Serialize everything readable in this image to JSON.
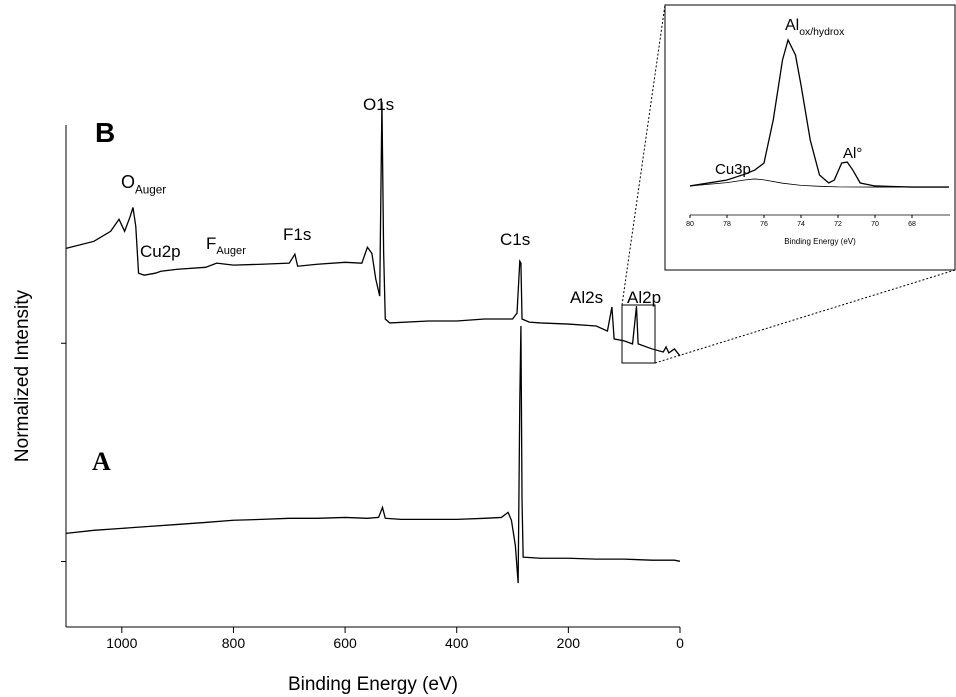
{
  "chart_data": [
    {
      "type": "line",
      "x_label": "Binding Energy (eV)",
      "y_label": "Normalized Intensity",
      "xlim": [
        1100,
        0
      ],
      "xticks": [
        1000,
        800,
        600,
        400,
        200,
        0
      ],
      "ylim": [
        0,
        2.3
      ],
      "yticks": [
        0.3,
        1.3
      ],
      "color": "#000000",
      "series": [
        {
          "x": [
            1100,
            1050,
            1000,
            950,
            900,
            850,
            800,
            750,
            700,
            650,
            600,
            560,
            540,
            533,
            528,
            500,
            450,
            400,
            350,
            320,
            308,
            302,
            295,
            290,
            287,
            285,
            283,
            281,
            250,
            200,
            150,
            100,
            50,
            10,
            0
          ],
          "values": [
            0.429,
            0.443,
            0.452,
            0.461,
            0.47,
            0.479,
            0.489,
            0.493,
            0.498,
            0.498,
            0.502,
            0.498,
            0.502,
            0.548,
            0.498,
            0.493,
            0.493,
            0.493,
            0.498,
            0.502,
            0.525,
            0.489,
            0.374,
            0.201,
            1.037,
            1.379,
            0.58,
            0.32,
            0.315,
            0.315,
            0.311,
            0.311,
            0.306,
            0.306,
            0.301
          ]
        },
        {
          "x": [
            1100,
            1050,
            1020,
            1005,
            995,
            985,
            980,
            975,
            970,
            960,
            940,
            930,
            900,
            850,
            830,
            800,
            750,
            700,
            690,
            685,
            650,
            600,
            570,
            560,
            552,
            545,
            538,
            534,
            531,
            528,
            520,
            450,
            400,
            350,
            300,
            292,
            287,
            285,
            283,
            270,
            250,
            200,
            150,
            130,
            122,
            118,
            100,
            85,
            78,
            75,
            50,
            30,
            25,
            20,
            10,
            0
          ],
          "values": [
            1.735,
            1.767,
            1.813,
            1.868,
            1.813,
            1.881,
            1.922,
            1.836,
            1.621,
            1.612,
            1.621,
            1.63,
            1.639,
            1.648,
            1.667,
            1.658,
            1.662,
            1.667,
            1.708,
            1.653,
            1.662,
            1.671,
            1.667,
            1.74,
            1.712,
            1.594,
            1.516,
            2.406,
            1.721,
            1.411,
            1.393,
            1.402,
            1.402,
            1.411,
            1.411,
            1.438,
            1.676,
            1.667,
            1.411,
            1.397,
            1.393,
            1.388,
            1.379,
            1.356,
            1.466,
            1.32,
            1.311,
            1.297,
            1.47,
            1.297,
            1.274,
            1.26,
            1.283,
            1.256,
            1.274,
            1.242
          ]
        }
      ],
      "annotations": [
        {
          "text": "B"
        },
        {
          "text": "A"
        },
        {
          "text": "O",
          "sub": "Auger"
        },
        {
          "text": "Cu2p"
        },
        {
          "text": "F",
          "sub": "Auger"
        },
        {
          "text": "F1s"
        },
        {
          "text": "O1s"
        },
        {
          "text": "C1s"
        },
        {
          "text": "Al2s"
        },
        {
          "text": "Al2p"
        }
      ]
    },
    {
      "type": "line",
      "x_label": "Binding Energy (eV)",
      "xlim": [
        80,
        66
      ],
      "xticks": [
        80,
        78,
        76,
        74,
        72,
        70,
        68
      ],
      "ylim": [
        0,
        1
      ],
      "color": "#000000",
      "series": [
        {
          "x": [
            80,
            78,
            77,
            76.5,
            76,
            75.5,
            75,
            74.7,
            74.3,
            74,
            73.5,
            73,
            72.5,
            72.2,
            71.8,
            71.5,
            71.2,
            70.8,
            70,
            68,
            67,
            66
          ],
          "values": [
            0.157,
            0.189,
            0.222,
            0.243,
            0.281,
            0.514,
            0.838,
            0.946,
            0.865,
            0.703,
            0.405,
            0.216,
            0.173,
            0.189,
            0.281,
            0.286,
            0.243,
            0.173,
            0.157,
            0.151,
            0.151,
            0.151
          ]
        },
        {
          "x": [
            80,
            78,
            77,
            76.5,
            76,
            75,
            74,
            73,
            72,
            70,
            66
          ],
          "values": [
            0.157,
            0.175,
            0.19,
            0.195,
            0.19,
            0.172,
            0.16,
            0.155,
            0.152,
            0.151,
            0.151
          ]
        }
      ],
      "annotations": [
        {
          "text": "Al",
          "sub": "ox/hydrox"
        },
        {
          "text": "Cu3p"
        },
        {
          "text": "Al°"
        }
      ]
    }
  ]
}
